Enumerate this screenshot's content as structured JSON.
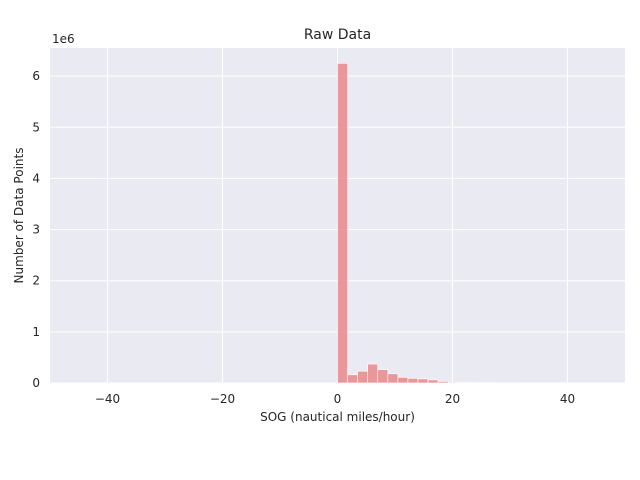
{
  "chart_data": {
    "type": "bar",
    "title": "Raw Data",
    "xlabel": "SOG (nautical miles/hour)",
    "ylabel": "Number of Data Points",
    "y_offset_text": "1e6",
    "xlim": [
      -50,
      50
    ],
    "ylim": [
      0,
      6.55
    ],
    "x_ticks": [
      -40,
      -20,
      0,
      20,
      40
    ],
    "x_tick_labels": [
      "−40",
      "−20",
      "0",
      "20",
      "40"
    ],
    "y_ticks": [
      0,
      1,
      2,
      3,
      4,
      5,
      6
    ],
    "y_tick_labels": [
      "0",
      "1",
      "2",
      "3",
      "4",
      "5",
      "6"
    ],
    "grid": true,
    "bar_color": "#e8898c",
    "background_color": "#eaeaf2",
    "bins": [
      {
        "x0": 0,
        "x1": 1.75,
        "value": 6.25
      },
      {
        "x0": 1.75,
        "x1": 3.5,
        "value": 0.16
      },
      {
        "x0": 3.5,
        "x1": 5.25,
        "value": 0.23
      },
      {
        "x0": 5.25,
        "x1": 7.0,
        "value": 0.37
      },
      {
        "x0": 7.0,
        "x1": 8.75,
        "value": 0.26
      },
      {
        "x0": 8.75,
        "x1": 10.5,
        "value": 0.18
      },
      {
        "x0": 10.5,
        "x1": 12.25,
        "value": 0.11
      },
      {
        "x0": 12.25,
        "x1": 14.0,
        "value": 0.09
      },
      {
        "x0": 14.0,
        "x1": 15.75,
        "value": 0.08
      },
      {
        "x0": 15.75,
        "x1": 17.5,
        "value": 0.06
      },
      {
        "x0": 17.5,
        "x1": 19.25,
        "value": 0.03
      },
      {
        "x0": 19.25,
        "x1": 21.0,
        "value": 0.015
      },
      {
        "x0": 21.0,
        "x1": 22.75,
        "value": 0.01
      },
      {
        "x0": 22.75,
        "x1": 24.5,
        "value": 0.008
      },
      {
        "x0": 24.5,
        "x1": 26.25,
        "value": 0.006
      },
      {
        "x0": 26.25,
        "x1": 28.0,
        "value": 0.005
      },
      {
        "x0": 28.0,
        "x1": 29.75,
        "value": 0.004
      },
      {
        "x0": 29.75,
        "x1": 31.5,
        "value": 0.003
      }
    ]
  }
}
